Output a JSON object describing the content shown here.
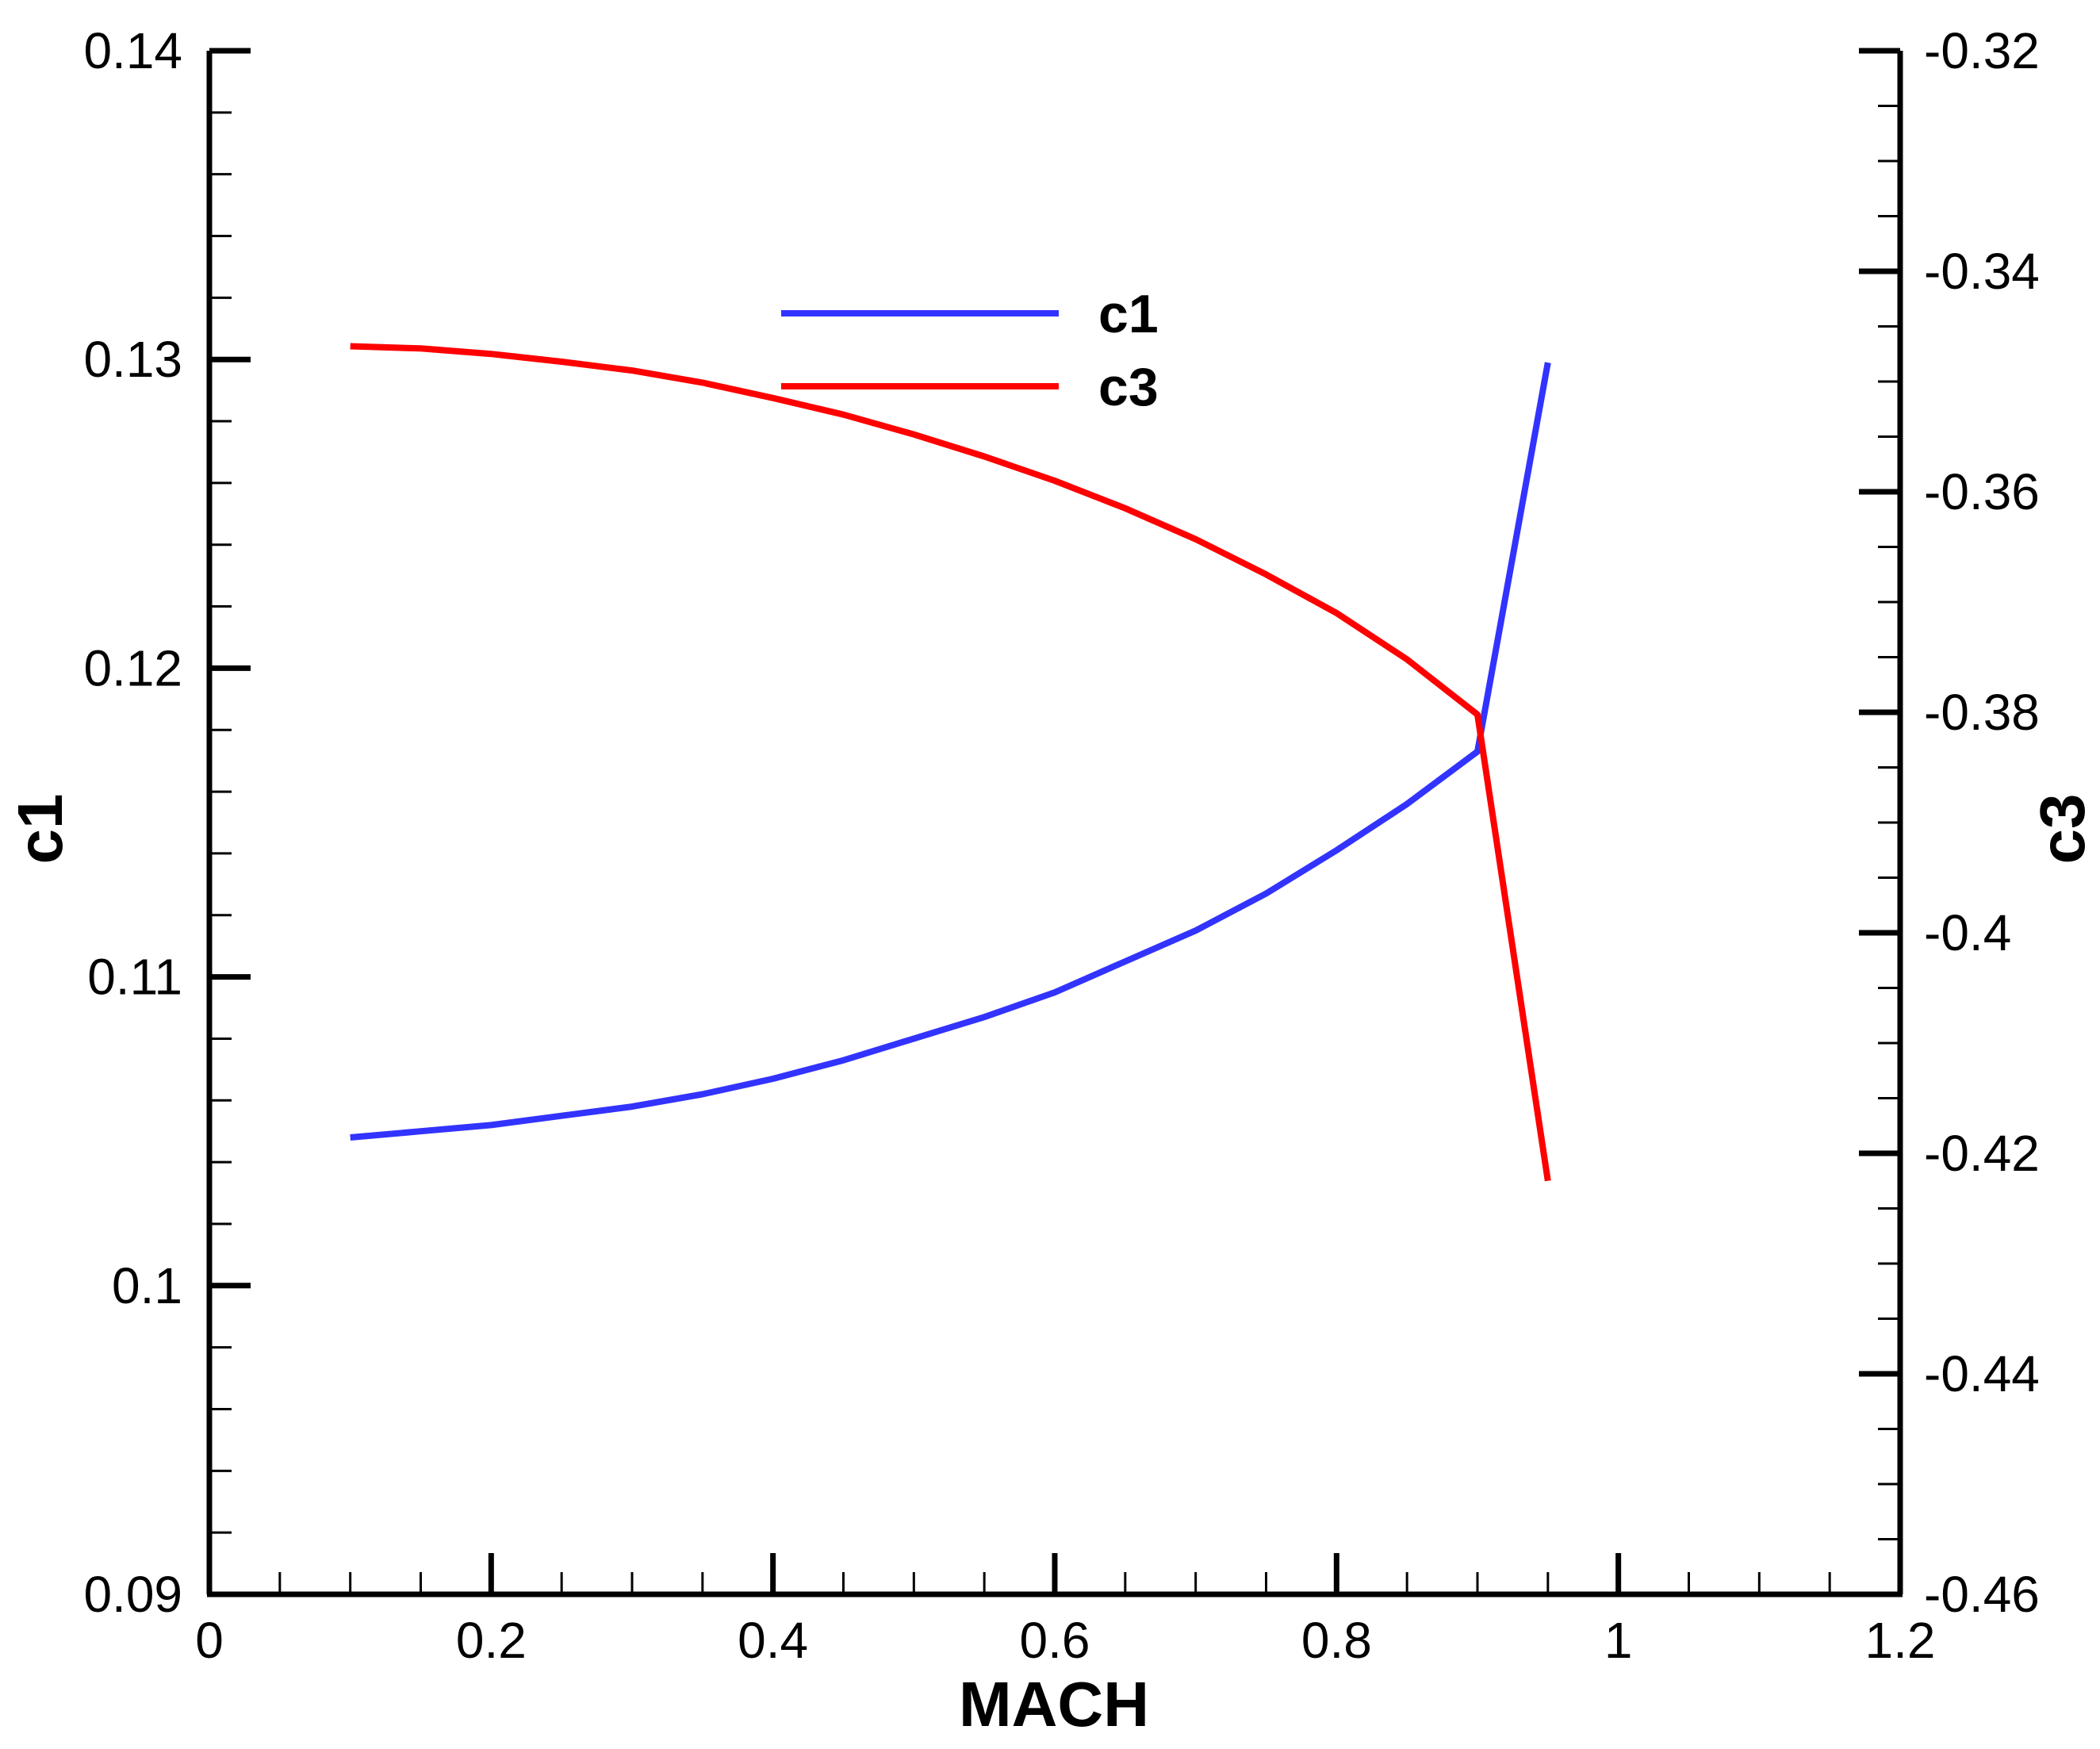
{
  "chart_data": {
    "type": "line",
    "title": "",
    "xlabel": "MACH",
    "ylabel_left": "c1",
    "ylabel_right": "c3",
    "xlim": [
      0,
      1.2
    ],
    "ylim_left": [
      0.09,
      0.14
    ],
    "ylim_right": [
      -0.46,
      -0.32
    ],
    "x_ticks": [
      "0",
      "0.2",
      "0.4",
      "0.6",
      "0.8",
      "1",
      "1.2"
    ],
    "y_left_ticks": [
      "0.09",
      "0.1",
      "0.11",
      "0.12",
      "0.13",
      "0.14"
    ],
    "y_right_ticks": [
      "-0.46",
      "-0.44",
      "-0.42",
      "-0.4",
      "-0.38",
      "-0.36",
      "-0.34",
      "-0.32"
    ],
    "grid": false,
    "legend_position": "top-center",
    "x": [
      0.1,
      0.15,
      0.2,
      0.25,
      0.3,
      0.35,
      0.4,
      0.45,
      0.5,
      0.55,
      0.6,
      0.65,
      0.7,
      0.75,
      0.8,
      0.85,
      0.9,
      0.95
    ],
    "series": [
      {
        "name": "c1",
        "axis": "left",
        "color": "#3333ff",
        "values": [
          0.1048,
          0.105,
          0.1052,
          0.1055,
          0.1058,
          0.1062,
          0.1067,
          0.1073,
          0.108,
          0.1087,
          0.1095,
          0.1105,
          0.1115,
          0.1127,
          0.1141,
          0.1156,
          0.1173,
          0.1299
        ]
      },
      {
        "name": "c3",
        "axis": "right",
        "color": "#ff0000",
        "values": [
          -0.3468,
          -0.347,
          -0.3475,
          -0.3482,
          -0.349,
          -0.3501,
          -0.3515,
          -0.353,
          -0.3548,
          -0.3568,
          -0.359,
          -0.3615,
          -0.3643,
          -0.3675,
          -0.371,
          -0.3752,
          -0.3802,
          -0.4225
        ]
      }
    ]
  }
}
